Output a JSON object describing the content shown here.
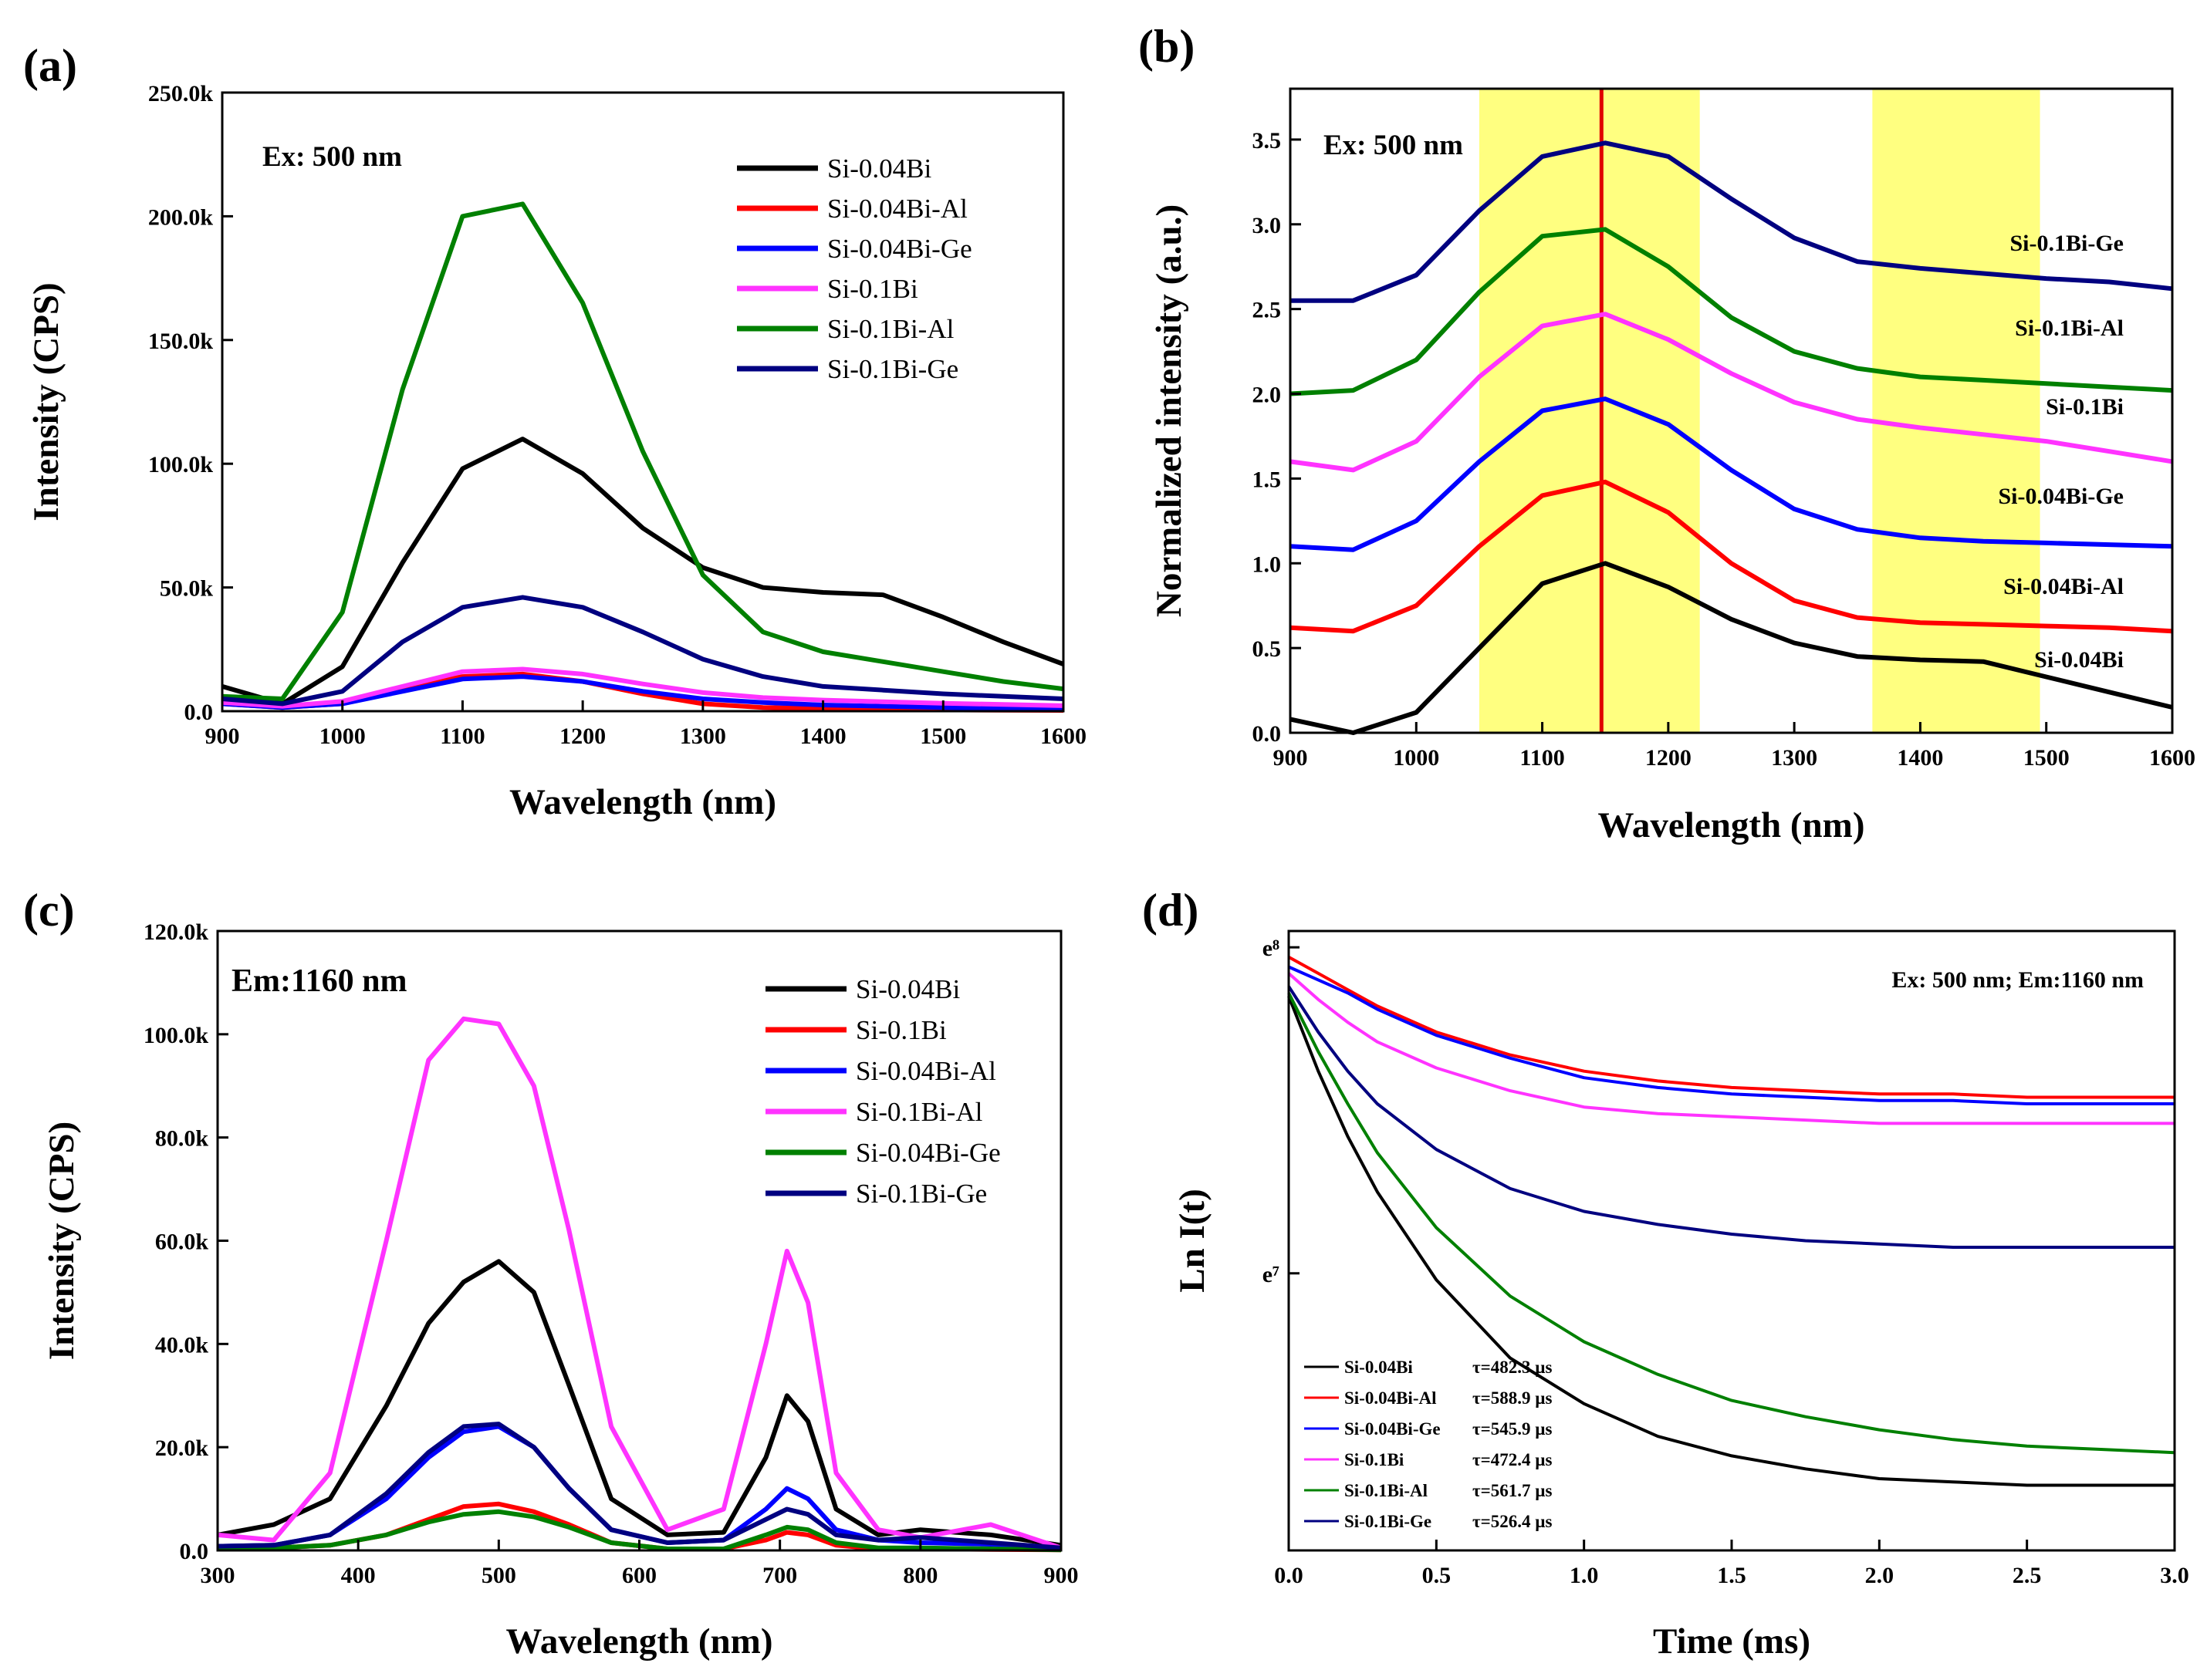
{
  "chart_data": [
    {
      "panel": "(a)",
      "type": "line",
      "xlabel": "Wavelength (nm)",
      "ylabel": "Intensity (CPS)",
      "xlim": [
        900,
        1600
      ],
      "ylim": [
        0,
        250000
      ],
      "xticks": [
        900,
        1000,
        1100,
        1200,
        1300,
        1400,
        1500,
        1600
      ],
      "xtick_labels": [
        "900",
        "1000",
        "1100",
        "1200",
        "1300",
        "1400",
        "1500",
        "1600"
      ],
      "yticks": [
        0,
        50000,
        100000,
        150000,
        200000,
        250000
      ],
      "ytick_labels": [
        "0.0",
        "50.0k",
        "100.0k",
        "150.0k",
        "200.0k",
        "250.0k"
      ],
      "annotation": "Ex: 500 nm",
      "legend_position": "top-right",
      "x": [
        900,
        950,
        1000,
        1050,
        1100,
        1150,
        1200,
        1250,
        1300,
        1350,
        1400,
        1450,
        1500,
        1550,
        1600
      ],
      "series": [
        {
          "name": "Si-0.04Bi",
          "color": "#000000",
          "values": [
            10000,
            3000,
            18000,
            60000,
            98000,
            110000,
            96000,
            74000,
            58000,
            50000,
            48000,
            47000,
            38000,
            28000,
            19000
          ]
        },
        {
          "name": "Si-0.04Bi-Al",
          "color": "#ff0000",
          "values": [
            3000,
            1500,
            3000,
            9000,
            14000,
            15000,
            12000,
            7000,
            3000,
            1500,
            1000,
            800,
            500,
            400,
            300
          ]
        },
        {
          "name": "Si-0.04Bi-Ge",
          "color": "#0000ff",
          "values": [
            3000,
            1500,
            3000,
            8000,
            13000,
            14000,
            12000,
            8000,
            5000,
            3500,
            2500,
            2000,
            1500,
            1200,
            1000
          ]
        },
        {
          "name": "Si-0.1Bi",
          "color": "#ff33ff",
          "values": [
            3500,
            2000,
            4000,
            10000,
            16000,
            17000,
            15000,
            11000,
            7500,
            5500,
            4500,
            3800,
            3200,
            2700,
            2200
          ]
        },
        {
          "name": "Si-0.1Bi-Al",
          "color": "#008000",
          "values": [
            6000,
            5000,
            40000,
            130000,
            200000,
            205000,
            165000,
            105000,
            55000,
            32000,
            24000,
            20000,
            16000,
            12000,
            9000
          ]
        },
        {
          "name": "Si-0.1Bi-Ge",
          "color": "#000080",
          "values": [
            5000,
            3000,
            8000,
            28000,
            42000,
            46000,
            42000,
            32000,
            21000,
            14000,
            10000,
            8500,
            7000,
            6000,
            5000
          ]
        }
      ]
    },
    {
      "panel": "(b)",
      "type": "line",
      "xlabel": "Wavelength (nm)",
      "ylabel": "Normalized intensity (a.u.)",
      "xlim": [
        900,
        1600
      ],
      "ylim": [
        0,
        3.8
      ],
      "xticks": [
        900,
        1000,
        1100,
        1200,
        1300,
        1400,
        1500,
        1600
      ],
      "xtick_labels": [
        "900",
        "1000",
        "1100",
        "1200",
        "1300",
        "1400",
        "1500",
        "1600"
      ],
      "yticks": [
        0,
        0.5,
        1.0,
        1.5,
        2.0,
        2.5,
        3.0,
        3.5
      ],
      "ytick_labels": [
        "0.0",
        "0.5",
        "1.0",
        "1.5",
        "2.0",
        "2.5",
        "3.0",
        "3.5"
      ],
      "annotation": "Ex: 500 nm",
      "highlight_bands": [
        [
          1050,
          1225
        ],
        [
          1362,
          1495
        ]
      ],
      "marker_line": 1147,
      "x": [
        900,
        950,
        1000,
        1050,
        1100,
        1150,
        1200,
        1250,
        1300,
        1350,
        1400,
        1450,
        1500,
        1550,
        1600
      ],
      "series": [
        {
          "name": "Si-0.04Bi",
          "color": "#000000",
          "values": [
            0.08,
            0.0,
            0.12,
            0.5,
            0.88,
            1.0,
            0.86,
            0.67,
            0.53,
            0.45,
            0.43,
            0.42,
            0.33,
            0.24,
            0.15
          ]
        },
        {
          "name": "Si-0.04Bi-Al",
          "color": "#ff0000",
          "values": [
            0.62,
            0.6,
            0.75,
            1.1,
            1.4,
            1.48,
            1.3,
            1.0,
            0.78,
            0.68,
            0.65,
            0.64,
            0.63,
            0.62,
            0.6
          ]
        },
        {
          "name": "Si-0.04Bi-Ge",
          "color": "#0000ff",
          "values": [
            1.1,
            1.08,
            1.25,
            1.6,
            1.9,
            1.97,
            1.82,
            1.55,
            1.32,
            1.2,
            1.15,
            1.13,
            1.12,
            1.11,
            1.1
          ]
        },
        {
          "name": "Si-0.1Bi",
          "color": "#ff33ff",
          "values": [
            1.6,
            1.55,
            1.72,
            2.1,
            2.4,
            2.47,
            2.32,
            2.12,
            1.95,
            1.85,
            1.8,
            1.76,
            1.72,
            1.66,
            1.6
          ]
        },
        {
          "name": "Si-0.1Bi-Al",
          "color": "#008000",
          "values": [
            2.0,
            2.02,
            2.2,
            2.6,
            2.93,
            2.97,
            2.75,
            2.45,
            2.25,
            2.15,
            2.1,
            2.08,
            2.06,
            2.04,
            2.02
          ]
        },
        {
          "name": "Si-0.1Bi-Ge",
          "color": "#000080",
          "values": [
            2.55,
            2.55,
            2.7,
            3.08,
            3.4,
            3.48,
            3.4,
            3.15,
            2.92,
            2.78,
            2.74,
            2.71,
            2.68,
            2.66,
            2.62
          ]
        }
      ],
      "series_labels": [
        "Si-0.1Bi-Ge",
        "Si-0.1Bi-Al",
        "Si-0.1Bi",
        "Si-0.04Bi-Ge",
        "Si-0.04Bi-Al",
        "Si-0.04Bi"
      ]
    },
    {
      "panel": "(c)",
      "type": "line",
      "xlabel": "Wavelength (nm)",
      "ylabel": "Intensity (CPS)",
      "xlim": [
        300,
        900
      ],
      "ylim": [
        0,
        120000
      ],
      "xticks": [
        300,
        400,
        500,
        600,
        700,
        800,
        900
      ],
      "xtick_labels": [
        "300",
        "400",
        "500",
        "600",
        "700",
        "800",
        "900"
      ],
      "yticks": [
        0,
        20000,
        40000,
        60000,
        80000,
        100000,
        120000
      ],
      "ytick_labels": [
        "0.0",
        "20.0k",
        "40.0k",
        "60.0k",
        "80.0k",
        "100.0k",
        "120.0k"
      ],
      "annotation": "Em:1160 nm",
      "legend_position": "top-right",
      "x": [
        300,
        340,
        380,
        420,
        450,
        475,
        500,
        525,
        550,
        580,
        620,
        660,
        690,
        705,
        720,
        740,
        770,
        800,
        850,
        900
      ],
      "series": [
        {
          "name": "Si-0.04Bi",
          "color": "#000000",
          "values": [
            3000,
            5000,
            10000,
            28000,
            44000,
            52000,
            56000,
            50000,
            32000,
            10000,
            3000,
            3500,
            18000,
            30000,
            25000,
            8000,
            3000,
            4000,
            3000,
            1000
          ]
        },
        {
          "name": "Si-0.1Bi",
          "color": "#ff0000",
          "values": [
            500,
            500,
            1000,
            3000,
            6000,
            8500,
            9000,
            7500,
            5000,
            1500,
            300,
            300,
            2000,
            3500,
            3000,
            1000,
            300,
            300,
            200,
            100
          ]
        },
        {
          "name": "Si-0.04Bi-Al",
          "color": "#0000ff",
          "values": [
            800,
            1000,
            3000,
            10000,
            18000,
            23000,
            24000,
            20000,
            12000,
            4000,
            1500,
            2000,
            8000,
            12000,
            10000,
            4000,
            2000,
            1500,
            1200,
            500
          ]
        },
        {
          "name": "Si-0.1Bi-Al",
          "color": "#ff33ff",
          "values": [
            3000,
            2000,
            15000,
            60000,
            95000,
            103000,
            102000,
            90000,
            62000,
            24000,
            4000,
            8000,
            40000,
            58000,
            48000,
            15000,
            4000,
            2500,
            5000,
            500
          ]
        },
        {
          "name": "Si-0.04Bi-Ge",
          "color": "#008000",
          "values": [
            500,
            500,
            1000,
            3000,
            5500,
            7000,
            7500,
            6500,
            4500,
            1500,
            300,
            300,
            3000,
            4500,
            4000,
            1500,
            500,
            500,
            300,
            100
          ]
        },
        {
          "name": "Si-0.1Bi-Ge",
          "color": "#000080",
          "values": [
            800,
            1000,
            3000,
            11000,
            19000,
            24000,
            24500,
            20000,
            12000,
            4000,
            1500,
            2000,
            6000,
            8000,
            7000,
            3000,
            2000,
            2500,
            1500,
            500
          ]
        }
      ]
    },
    {
      "panel": "(d)",
      "type": "line",
      "xlabel": "Time (ms)",
      "ylabel": "Ln I(t)",
      "xlim": [
        0,
        3.0
      ],
      "ylim": [
        6.15,
        8.05
      ],
      "xticks": [
        0,
        0.5,
        1.0,
        1.5,
        2.0,
        2.5,
        3.0
      ],
      "xtick_labels": [
        "0.0",
        "0.5",
        "1.0",
        "1.5",
        "2.0",
        "2.5",
        "3.0"
      ],
      "ytick_labels": [
        "e⁷",
        "e⁸"
      ],
      "ytick_values": [
        7,
        8
      ],
      "annotation": "Ex: 500 nm; Em:1160 nm",
      "x": [
        0,
        0.1,
        0.2,
        0.3,
        0.5,
        0.75,
        1.0,
        1.25,
        1.5,
        1.75,
        2.0,
        2.25,
        2.5,
        2.75,
        3.0
      ],
      "series": [
        {
          "name": "Si-0.04Bi",
          "tau": "τ=482.3 µs",
          "color": "#000000",
          "values": [
            7.85,
            7.62,
            7.42,
            7.25,
            6.98,
            6.74,
            6.6,
            6.5,
            6.44,
            6.4,
            6.37,
            6.36,
            6.35,
            6.35,
            6.35
          ]
        },
        {
          "name": "Si-0.04Bi-Al",
          "tau": "τ=588.9 µs",
          "color": "#ff0000",
          "values": [
            7.97,
            7.92,
            7.87,
            7.82,
            7.74,
            7.67,
            7.62,
            7.59,
            7.57,
            7.56,
            7.55,
            7.55,
            7.54,
            7.54,
            7.54
          ]
        },
        {
          "name": "Si-0.04Bi-Ge",
          "tau": "τ=545.9 µs",
          "color": "#0000ff",
          "values": [
            7.94,
            7.9,
            7.86,
            7.81,
            7.73,
            7.66,
            7.6,
            7.57,
            7.55,
            7.54,
            7.53,
            7.53,
            7.52,
            7.52,
            7.52
          ]
        },
        {
          "name": "Si-0.1Bi",
          "tau": "τ=472.4 µs",
          "color": "#ff33ff",
          "values": [
            7.92,
            7.84,
            7.77,
            7.71,
            7.63,
            7.56,
            7.51,
            7.49,
            7.48,
            7.47,
            7.46,
            7.46,
            7.46,
            7.46,
            7.46
          ]
        },
        {
          "name": "Si-0.1Bi-Al",
          "tau": "τ=561.7 µs",
          "color": "#008000",
          "values": [
            7.86,
            7.68,
            7.52,
            7.37,
            7.14,
            6.93,
            6.79,
            6.69,
            6.61,
            6.56,
            6.52,
            6.49,
            6.47,
            6.46,
            6.45
          ]
        },
        {
          "name": "Si-0.1Bi-Ge",
          "tau": "τ=526.4 µs",
          "color": "#000080",
          "values": [
            7.88,
            7.74,
            7.62,
            7.52,
            7.38,
            7.26,
            7.19,
            7.15,
            7.12,
            7.1,
            7.09,
            7.08,
            7.08,
            7.08,
            7.08
          ]
        }
      ]
    }
  ]
}
